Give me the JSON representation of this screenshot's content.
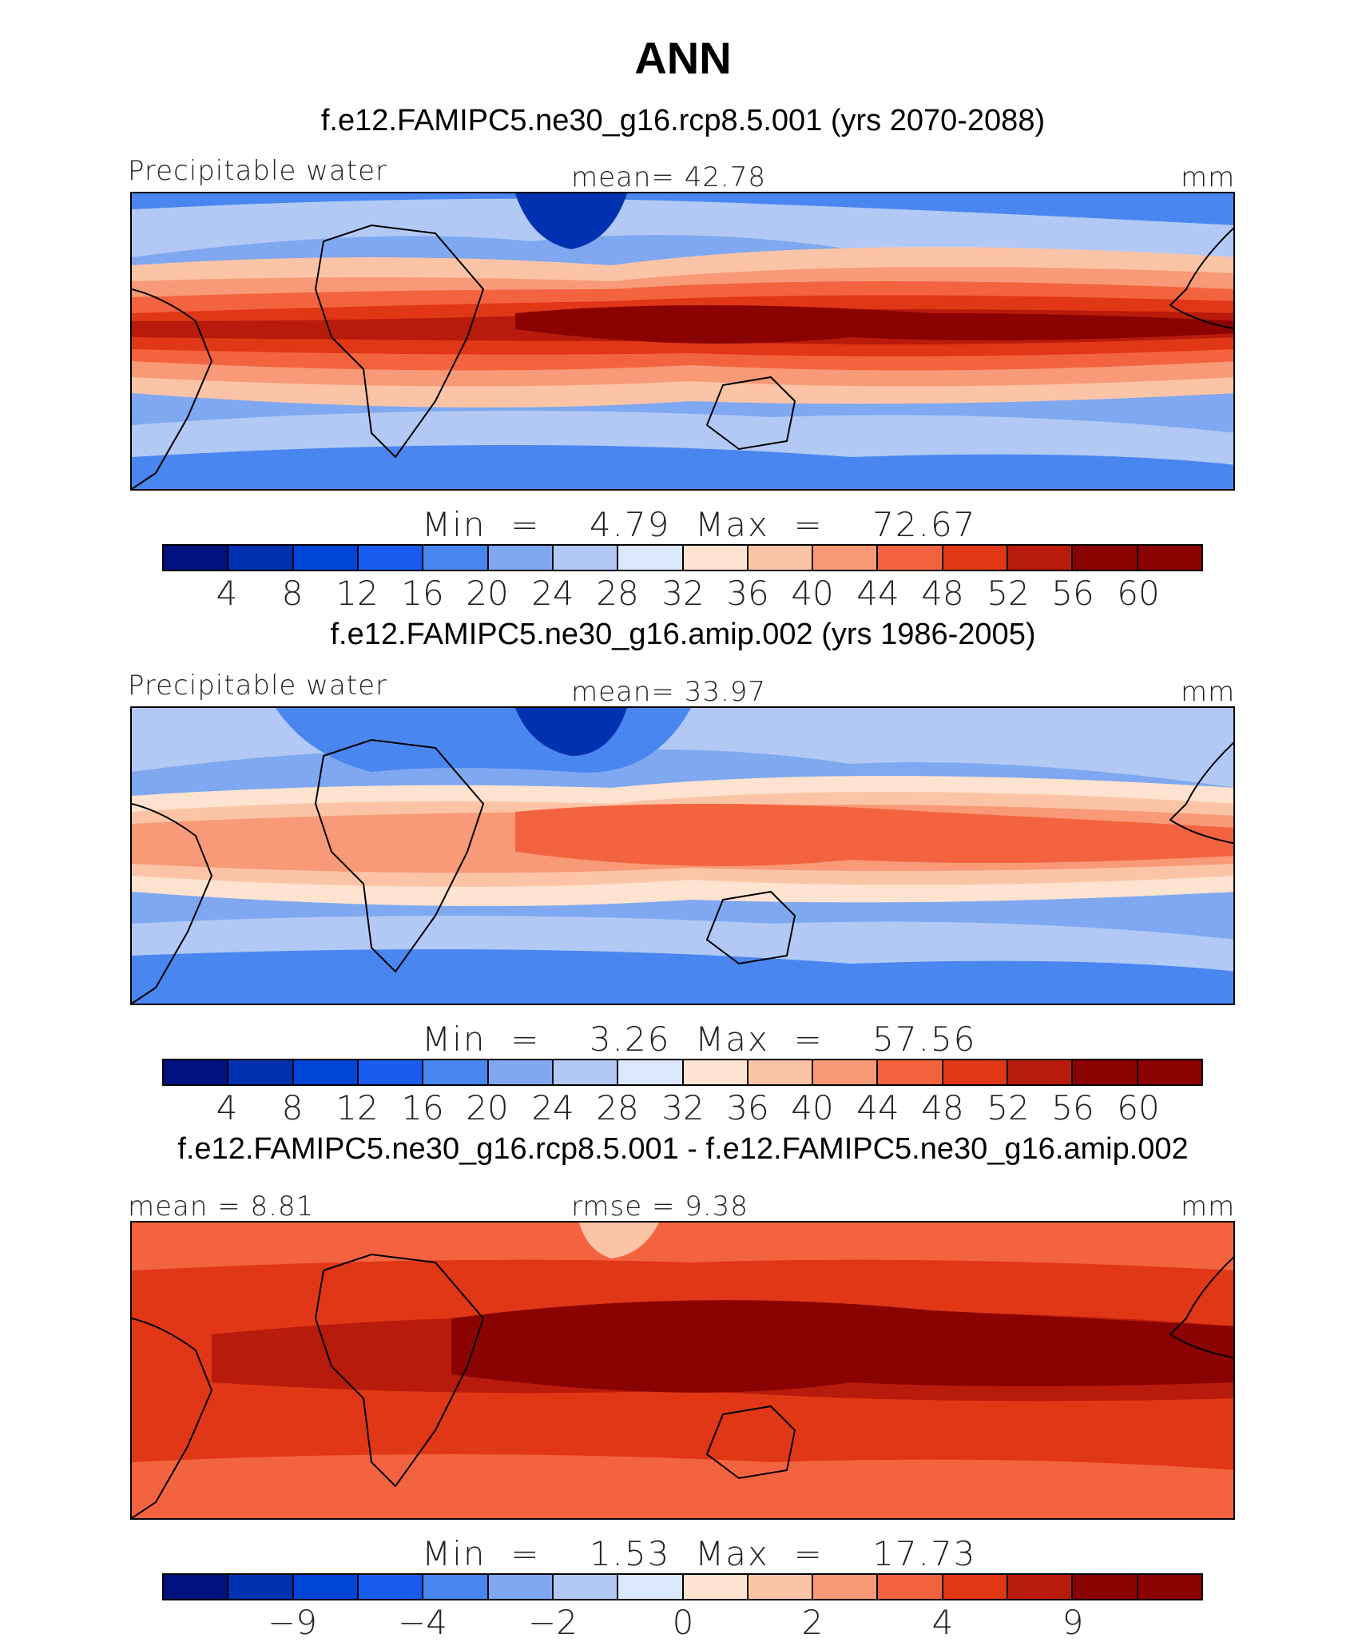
{
  "title": "ANN",
  "panels": [
    {
      "title": "f.e12.FAMIPC5.ne30_g16.rcp8.5.001 (yrs 2070-2088)",
      "left_label": "Precipitable water",
      "center_label": "mean=   42.78",
      "right_label": "mm",
      "minmax": "Min  =    4.79  Max  =    72.67",
      "colorbar_ticks": [
        "4",
        "8",
        "12",
        "16",
        "20",
        "24",
        "28",
        "32",
        "36",
        "40",
        "44",
        "48",
        "52",
        "56",
        "60"
      ]
    },
    {
      "title": "f.e12.FAMIPC5.ne30_g16.amip.002 (yrs 1986-2005)",
      "left_label": "Precipitable water",
      "center_label": "mean=   33.97",
      "right_label": "mm",
      "minmax": "Min  =    3.26  Max  =    57.56",
      "colorbar_ticks": [
        "4",
        "8",
        "12",
        "16",
        "20",
        "24",
        "28",
        "32",
        "36",
        "40",
        "44",
        "48",
        "52",
        "56",
        "60"
      ]
    },
    {
      "title": "f.e12.FAMIPC5.ne30_g16.rcp8.5.001 - f.e12.FAMIPC5.ne30_g16.amip.002",
      "left_label": "mean  =     8.81",
      "center_label": "rmse  =     9.38",
      "right_label": "mm",
      "minmax": "Min  =    1.53  Max  =    17.73",
      "colorbar_ticks": [
        "−9",
        "−4",
        "−2",
        "0",
        "2",
        "4",
        "9"
      ]
    }
  ],
  "colors": {
    "palette": [
      "#00127e",
      "#0031b0",
      "#0044d8",
      "#1a5cf0",
      "#4a86f0",
      "#7fa8f0",
      "#b2c9f5",
      "#dbe7fa",
      "#fde3d0",
      "#fbc4a6",
      "#f89a77",
      "#f4633f",
      "#e03716",
      "#b81b0c",
      "#8a0302"
    ]
  }
}
